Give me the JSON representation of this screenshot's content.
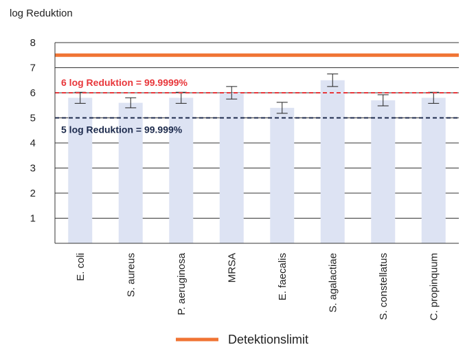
{
  "chart_data": {
    "type": "bar",
    "ylabel": "log Reduktion",
    "ylim": [
      0,
      8
    ],
    "yticks": [
      1,
      2,
      3,
      4,
      5,
      6,
      7,
      8
    ],
    "categories": [
      "E. coli",
      "S. aureus",
      "P. aeruginosa",
      "MRSA",
      "E. faecalis",
      "S. agalactiae",
      "S. constellatus",
      "C. propinquum"
    ],
    "values": [
      5.8,
      5.6,
      5.8,
      6.0,
      5.4,
      6.5,
      5.7,
      5.8
    ],
    "error": [
      0.22,
      0.2,
      0.22,
      0.25,
      0.22,
      0.25,
      0.22,
      0.22
    ],
    "bar_color": "#dde3f3",
    "reference_lines": [
      {
        "label": "Detektionslimit",
        "y": 7.5,
        "color": "#f07434",
        "style": "solid"
      },
      {
        "label": "6 log Reduktion = 99.9999%",
        "y": 6,
        "color": "#e8363a",
        "style": "dashed"
      },
      {
        "label": "5 log Reduktion = 99.999%",
        "y": 5,
        "color": "#1c2a4c",
        "style": "dashed"
      }
    ],
    "legend": [
      {
        "label": "Detektionslimit",
        "color": "#f07434"
      }
    ],
    "legend_position": "bottom-center",
    "grid": true
  }
}
